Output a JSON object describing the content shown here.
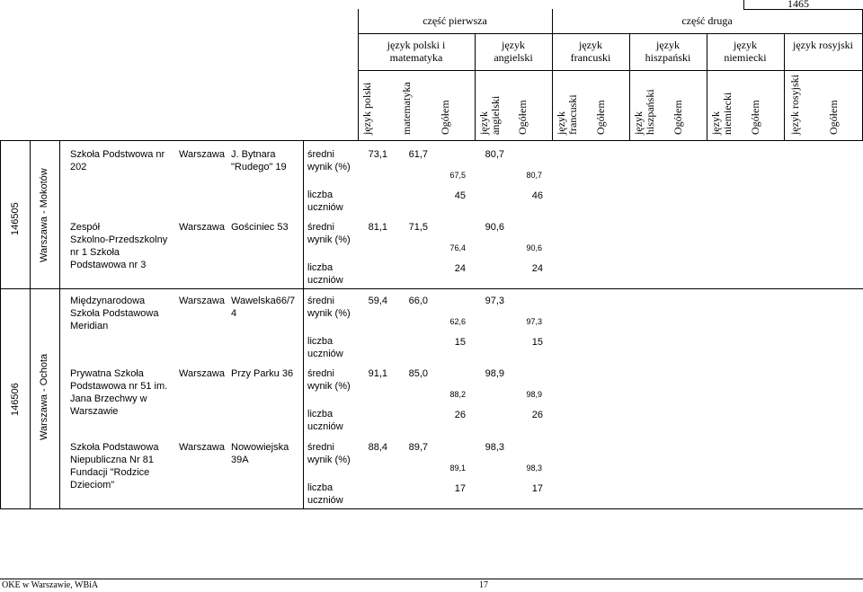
{
  "page_number_top": "1465",
  "header": {
    "part_one": "część pierwsza",
    "part_two": "część druga",
    "groups": [
      "język polski i\nmatematyka",
      "język\nangielski",
      "język\nfrancuski",
      "język\nhiszpański",
      "język\nniemiecki",
      "język rosyjski"
    ],
    "columns": [
      "język polski",
      "matematyka",
      "Ogółem",
      "język\nangielski",
      "Ogółem",
      "język\nfrancuski",
      "Ogółem",
      "język\nhiszpański",
      "Ogółem",
      "język\nniemiecki",
      "Ogółem",
      "język rosyjski",
      "Ogółem"
    ]
  },
  "districts": [
    {
      "code": "146505",
      "name": "Warszawa - Mokotów"
    },
    {
      "code": "146506",
      "name": "Warszawa - Ochota"
    }
  ],
  "labels": {
    "avg": "średni\nwynik (%)",
    "count": "liczba\nuczniów"
  },
  "schools": [
    {
      "name": "Szkoła Podstwowa nr\n202",
      "city": "Warszawa",
      "address": "J. Bytnara\n\"Rudego\" 19",
      "pl": "73,1",
      "mat": "61,7",
      "total1": "67,5",
      "ang": "80,7",
      "ang_total": "80,7",
      "count1": "45",
      "count2": "46"
    },
    {
      "name": "Zespół\nSzkolno-Przedszkolny\nnr 1      Szkoła\nPodstawowa nr 3",
      "city": "Warszawa",
      "address": "Gościniec 53",
      "pl": "81,1",
      "mat": "71,5",
      "total1": "76,4",
      "ang": "90,6",
      "ang_total": "90,6",
      "count1": "24",
      "count2": "24"
    },
    {
      "name": "Międzynarodowa\nSzkoła Podstawowa\nMeridian",
      "city": "Warszawa",
      "address": "Wawelska66/7\n4",
      "pl": "59,4",
      "mat": "66,0",
      "total1": "62,6",
      "ang": "97,3",
      "ang_total": "97,3",
      "count1": "15",
      "count2": "15"
    },
    {
      "name": "Prywatna Szkoła\nPodstawowa nr 51 im.\nJana Brzechwy w\nWarszawie",
      "city": "Warszawa",
      "address": "Przy Parku 36",
      "pl": "91,1",
      "mat": "85,0",
      "total1": "88,2",
      "ang": "98,9",
      "ang_total": "98,9",
      "count1": "26",
      "count2": "26"
    },
    {
      "name": "Szkoła Podstawowa\nNiepubliczna Nr 81\nFundacji \"Rodzice\nDzieciom\"",
      "city": "Warszawa",
      "address": "Nowowiejska\n39A",
      "pl": "88,4",
      "mat": "89,7",
      "total1": "89,1",
      "ang": "98,3",
      "ang_total": "98,3",
      "count1": "17",
      "count2": "17"
    }
  ],
  "footer": {
    "left": "OKE w Warszawie, WBiA",
    "page": "17"
  }
}
